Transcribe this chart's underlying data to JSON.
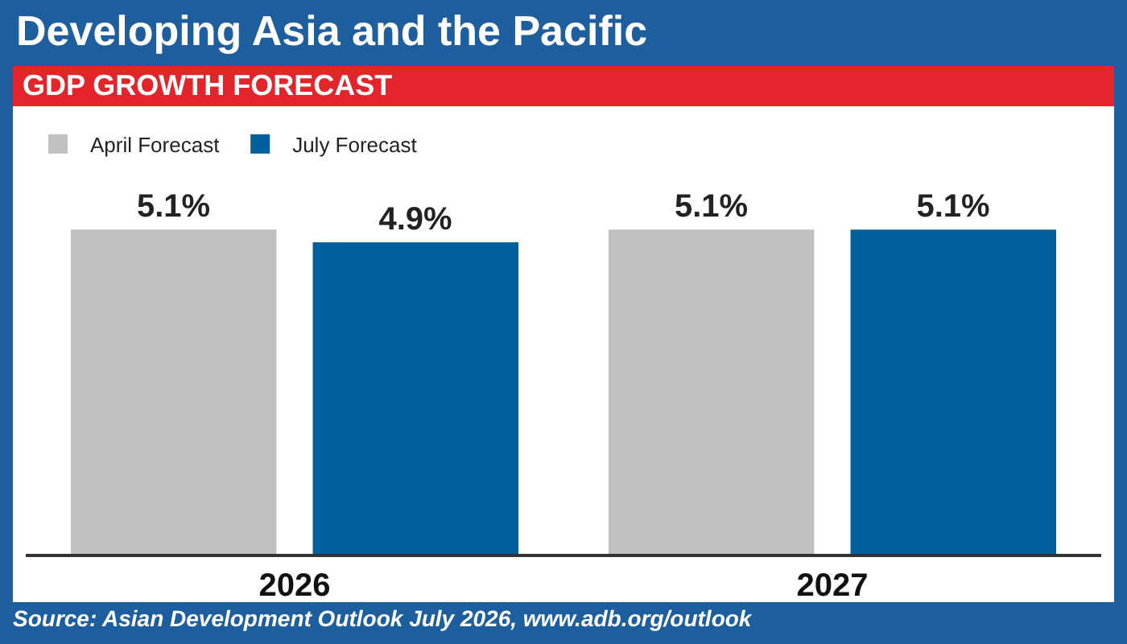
{
  "chart_data": {
    "type": "bar",
    "title": "Developing Asia and the Pacific",
    "subtitle": "GDP GROWTH FORECAST",
    "categories": [
      "2026",
      "2027"
    ],
    "series": [
      {
        "name": "April Forecast",
        "color": "#c0c0c0",
        "values": [
          5.1,
          5.1
        ],
        "value_labels": [
          "5.1%",
          "5.1%"
        ]
      },
      {
        "name": "July Forecast",
        "color": "#00609c",
        "values": [
          4.9,
          5.1
        ],
        "value_labels": [
          "4.9%",
          "5.1%"
        ]
      }
    ],
    "annotations": [
      "Source: Asian Development Outlook July 2026, www.adb.org/outlook"
    ],
    "legend": "top left",
    "grid": false,
    "tick_labels": "x"
  }
}
